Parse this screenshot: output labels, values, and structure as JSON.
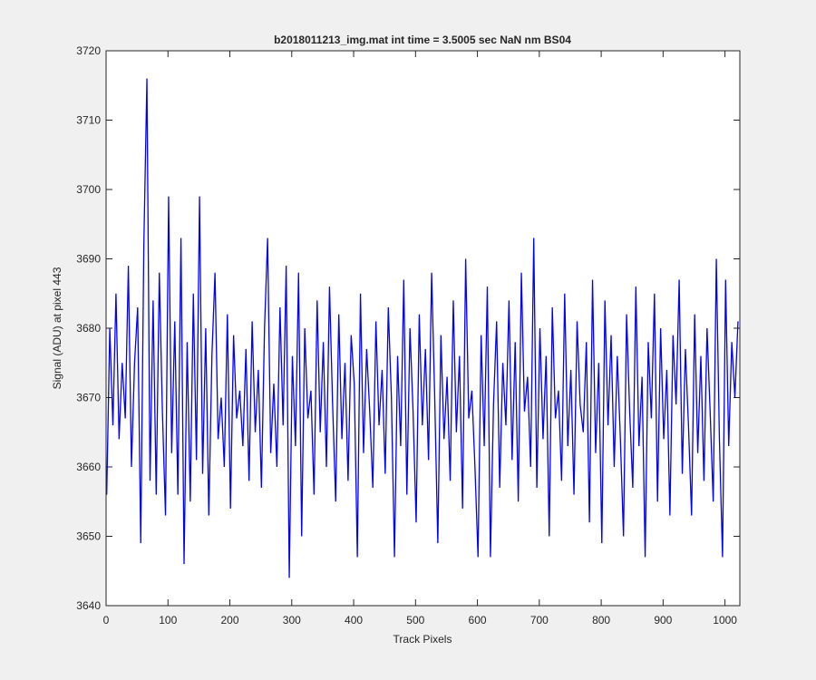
{
  "chart_data": {
    "type": "line",
    "title": "b2018011213_img.mat int time = 3.5005 sec  NaN nm BS04",
    "x_label": "Track Pixels",
    "y_label": "Signal (ADU) at pixel 443",
    "xlim": [
      0,
      1024
    ],
    "ylim": [
      3640,
      3720
    ],
    "xticks": [
      0,
      100,
      200,
      300,
      400,
      500,
      600,
      700,
      800,
      900,
      1000
    ],
    "yticks": [
      3640,
      3650,
      3660,
      3670,
      3680,
      3690,
      3700,
      3710,
      3720
    ],
    "x": [
      1,
      6,
      11,
      16,
      21,
      26,
      31,
      36,
      41,
      46,
      51,
      56,
      61,
      66,
      71,
      76,
      81,
      86,
      91,
      96,
      101,
      106,
      111,
      116,
      121,
      126,
      131,
      136,
      141,
      146,
      151,
      156,
      161,
      166,
      171,
      176,
      181,
      186,
      191,
      196,
      201,
      206,
      211,
      216,
      221,
      226,
      231,
      236,
      241,
      246,
      251,
      256,
      261,
      266,
      271,
      276,
      281,
      286,
      291,
      296,
      301,
      306,
      311,
      316,
      321,
      326,
      331,
      336,
      341,
      346,
      351,
      356,
      361,
      366,
      371,
      376,
      381,
      386,
      391,
      396,
      401,
      406,
      411,
      416,
      421,
      426,
      431,
      436,
      441,
      446,
      451,
      456,
      461,
      466,
      471,
      476,
      481,
      486,
      491,
      496,
      501,
      506,
      511,
      516,
      521,
      526,
      531,
      536,
      541,
      546,
      551,
      556,
      561,
      566,
      571,
      576,
      581,
      586,
      591,
      596,
      601,
      606,
      611,
      616,
      621,
      626,
      631,
      636,
      641,
      646,
      651,
      656,
      661,
      666,
      671,
      676,
      681,
      686,
      691,
      696,
      701,
      706,
      711,
      716,
      721,
      726,
      731,
      736,
      741,
      746,
      751,
      756,
      761,
      766,
      771,
      776,
      781,
      786,
      791,
      796,
      801,
      806,
      811,
      816,
      821,
      826,
      831,
      836,
      841,
      846,
      851,
      856,
      861,
      866,
      871,
      876,
      881,
      886,
      891,
      896,
      901,
      906,
      911,
      916,
      921,
      926,
      931,
      936,
      941,
      946,
      951,
      956,
      961,
      966,
      971,
      976,
      981,
      986,
      991,
      996,
      1001,
      1006,
      1011,
      1016,
      1021
    ],
    "series": [
      {
        "color": "#0000ff",
        "values": [
          3656,
          3680,
          3666,
          3685,
          3664,
          3675,
          3667,
          3689,
          3660,
          3675,
          3683,
          3649,
          3692,
          3716,
          3658,
          3684,
          3656,
          3688,
          3668,
          3653,
          3699,
          3662,
          3681,
          3656,
          3693,
          3646,
          3678,
          3655,
          3685,
          3661,
          3699,
          3659,
          3680,
          3653,
          3676,
          3688,
          3664,
          3670,
          3660,
          3682,
          3654,
          3679,
          3667,
          3671,
          3663,
          3677,
          3658,
          3681,
          3665,
          3674,
          3657,
          3680,
          3693,
          3662,
          3672,
          3660,
          3683,
          3666,
          3689,
          3644,
          3676,
          3663,
          3688,
          3650,
          3680,
          3667,
          3671,
          3656,
          3684,
          3665,
          3678,
          3660,
          3686,
          3669,
          3655,
          3682,
          3664,
          3675,
          3658,
          3679,
          3672,
          3647,
          3685,
          3662,
          3677,
          3668,
          3657,
          3681,
          3666,
          3674,
          3659,
          3683,
          3670,
          3647,
          3676,
          3663,
          3687,
          3656,
          3680,
          3668,
          3652,
          3682,
          3666,
          3677,
          3661,
          3688,
          3670,
          3649,
          3679,
          3664,
          3673,
          3658,
          3684,
          3665,
          3676,
          3654,
          3690,
          3667,
          3671,
          3660,
          3647,
          3679,
          3663,
          3686,
          3647,
          3669,
          3681,
          3657,
          3675,
          3666,
          3684,
          3661,
          3678,
          3655,
          3688,
          3668,
          3673,
          3660,
          3693,
          3657,
          3680,
          3664,
          3676,
          3650,
          3683,
          3667,
          3671,
          3658,
          3685,
          3663,
          3674,
          3656,
          3681,
          3669,
          3665,
          3678,
          3652,
          3687,
          3662,
          3675,
          3649,
          3684,
          3666,
          3679,
          3660,
          3676,
          3664,
          3650,
          3682,
          3668,
          3657,
          3686,
          3663,
          3673,
          3647,
          3678,
          3667,
          3685,
          3655,
          3680,
          3664,
          3674,
          3653,
          3679,
          3669,
          3687,
          3659,
          3677,
          3666,
          3653,
          3682,
          3662,
          3676,
          3658,
          3680,
          3668,
          3655,
          3690,
          3664,
          3647,
          3687,
          3663,
          3678,
          3670,
          3681
        ]
      }
    ]
  }
}
